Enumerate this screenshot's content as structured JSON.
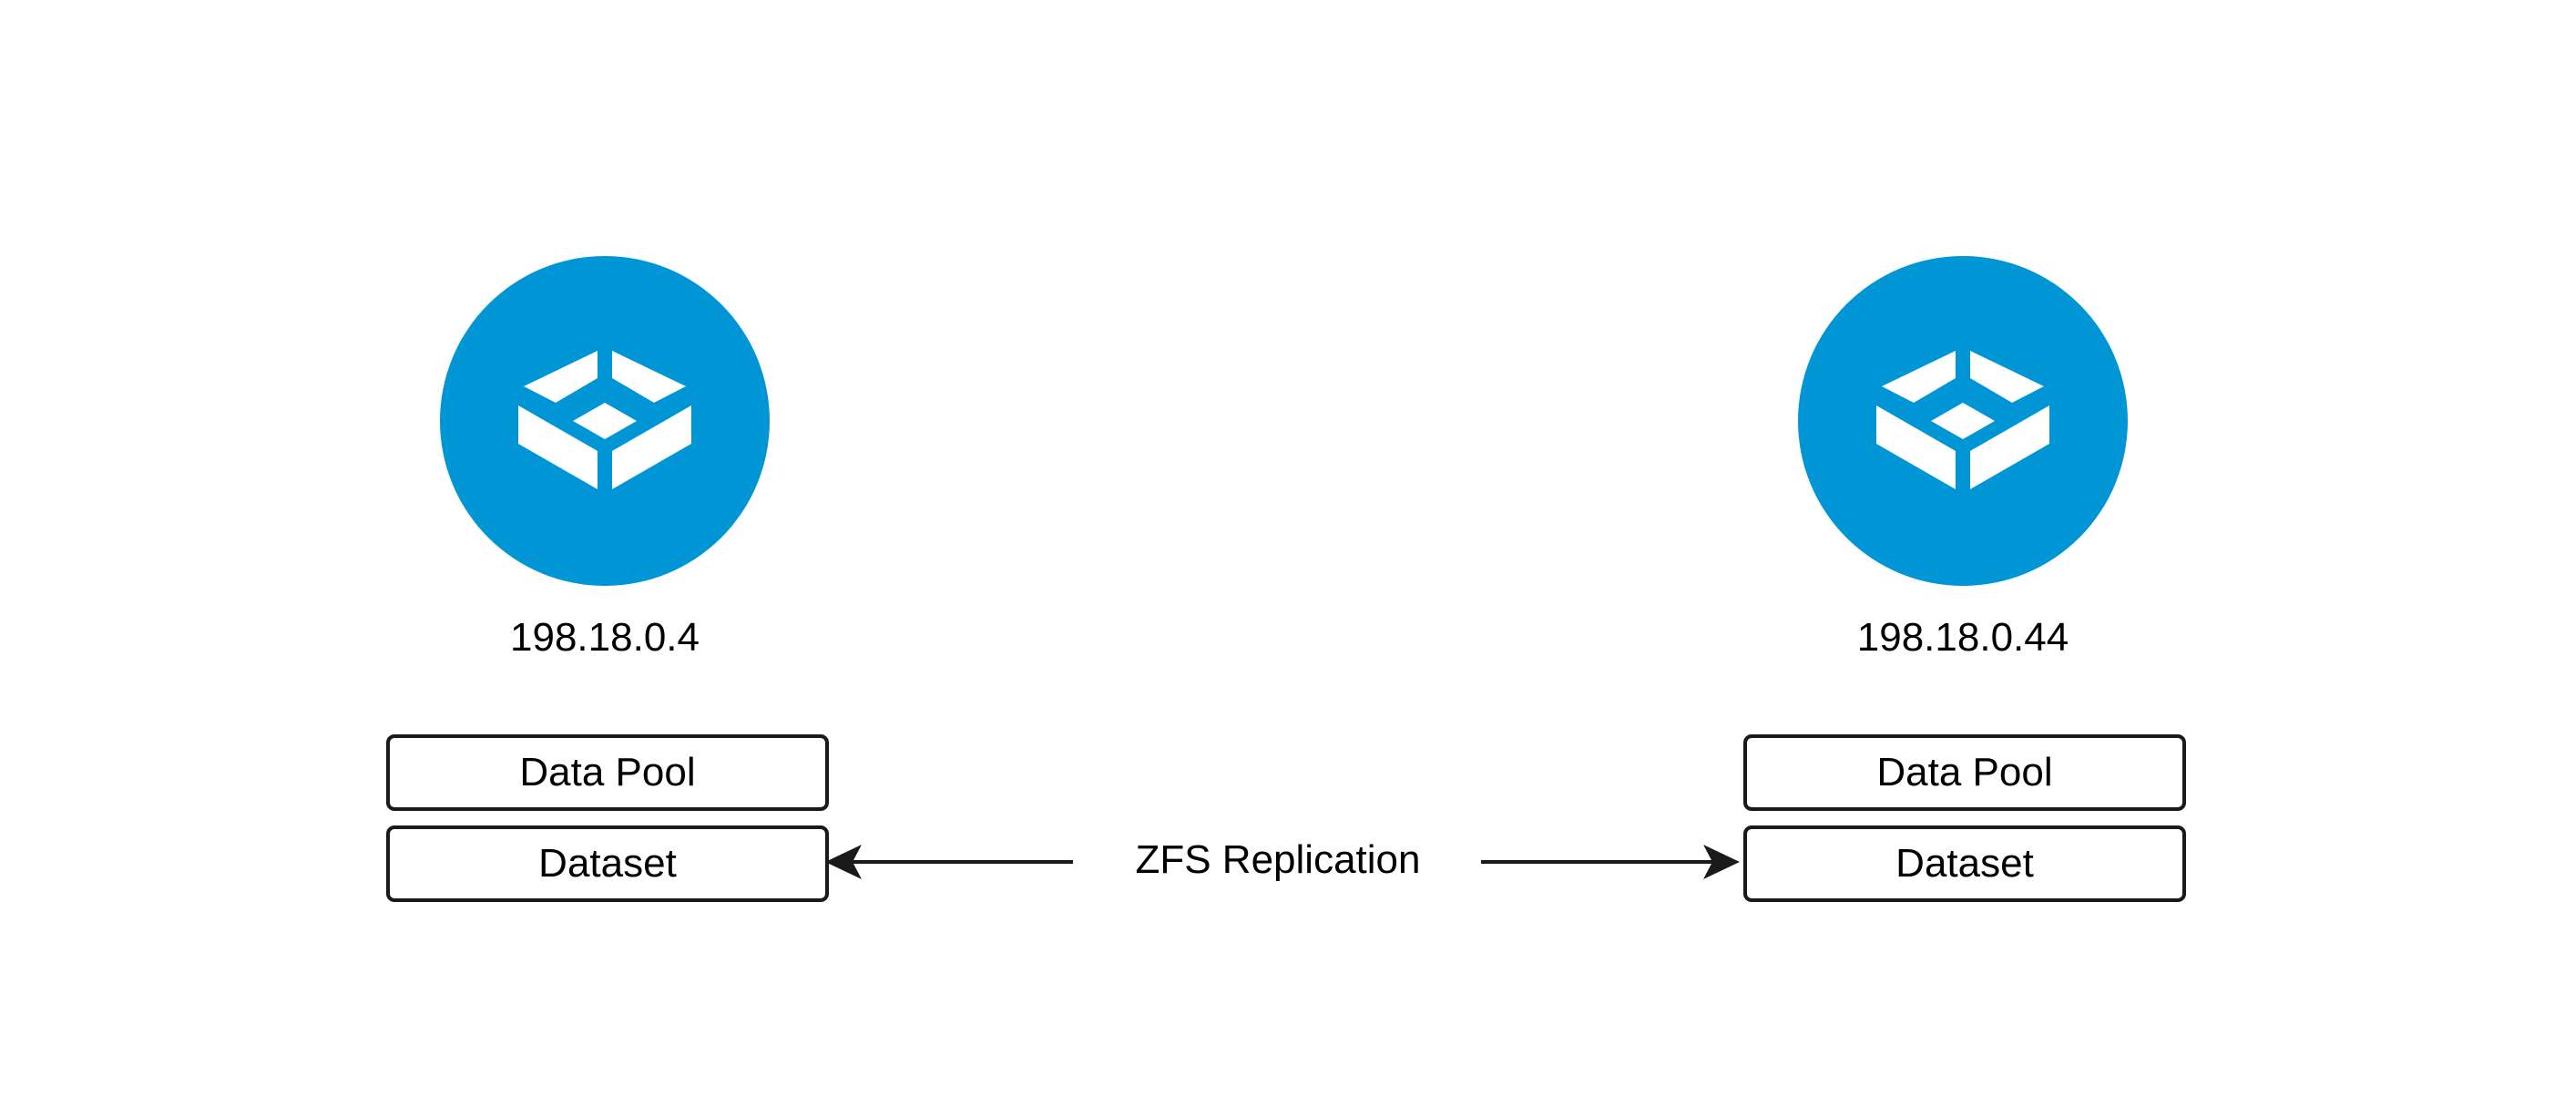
{
  "colors": {
    "node_fill": "#0095D5",
    "icon_glyph": "#FFFFFF",
    "stroke": "#1A1A1A",
    "background": "#FFFFFF"
  },
  "nodes": [
    {
      "icon": "truenas-server-icon",
      "ip": "198.18.0.4",
      "boxes": {
        "pool": "Data Pool",
        "dataset": "Dataset"
      }
    },
    {
      "icon": "truenas-server-icon",
      "ip": "198.18.0.44",
      "boxes": {
        "pool": "Data Pool",
        "dataset": "Dataset"
      }
    }
  ],
  "connector": {
    "label": "ZFS Replication",
    "direction": "bidirectional"
  }
}
